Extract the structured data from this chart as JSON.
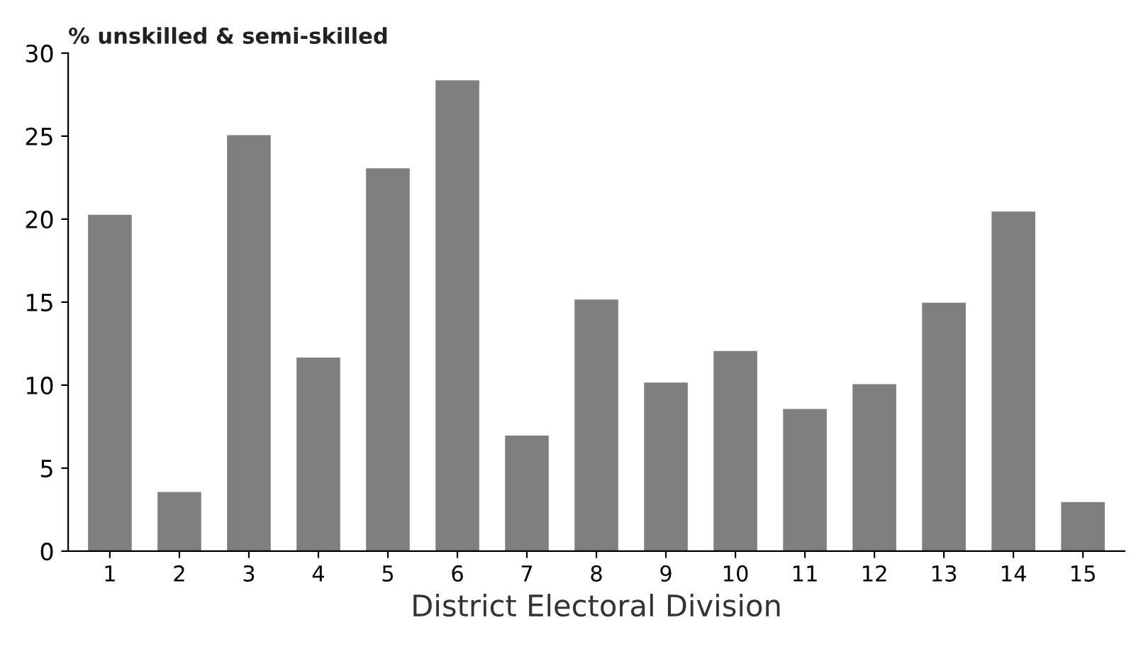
{
  "chart_data": {
    "type": "bar",
    "ylabel": "% unskilled & semi-skilled",
    "xlabel": "District Electoral Division",
    "categories": [
      "1",
      "2",
      "3",
      "4",
      "5",
      "6",
      "7",
      "8",
      "9",
      "10",
      "11",
      "12",
      "13",
      "14",
      "15"
    ],
    "values": [
      20.2,
      3.5,
      25,
      11.6,
      23,
      28.3,
      6.9,
      15.1,
      10.1,
      12,
      8.5,
      10,
      14.9,
      20.4,
      2.9
    ],
    "color": "#7f7f7f",
    "ylim": [
      0,
      30
    ],
    "yticks": [
      0,
      5,
      10,
      15,
      20,
      25,
      30
    ],
    "grid": false
  }
}
